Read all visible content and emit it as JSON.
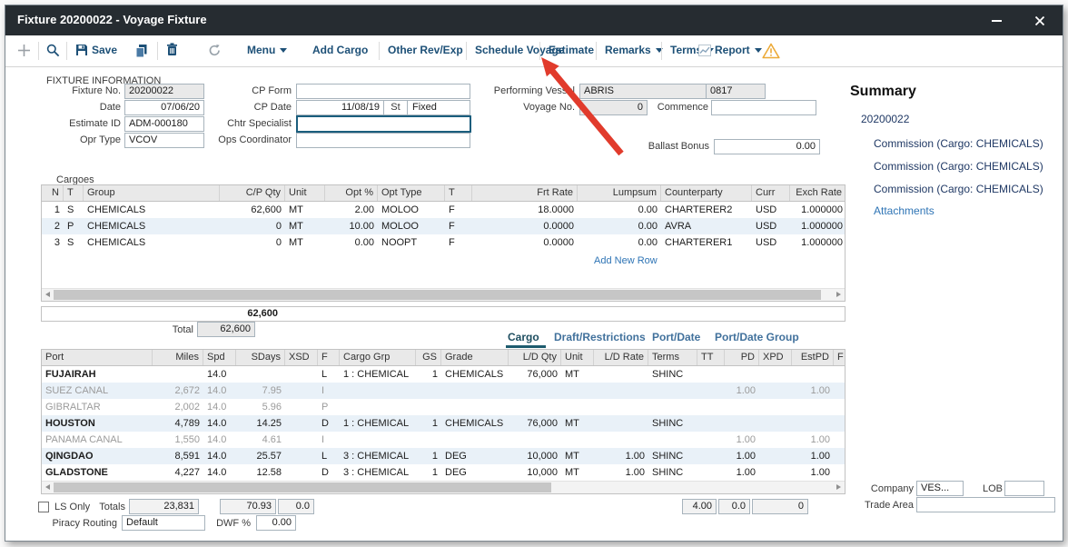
{
  "window": {
    "title": "Fixture 20200022 - Voyage Fixture"
  },
  "toolbar": {
    "save": "Save",
    "menu": "Menu",
    "add_cargo": "Add Cargo",
    "other_rev_exp": "Other Rev/Exp",
    "schedule_voyage": "Schedule Voyage",
    "estimate": "Estimate",
    "remarks": "Remarks",
    "terms": "Terms",
    "report": "Report"
  },
  "fixture_info": {
    "title": "FIXTURE INFORMATION",
    "fixture_no": {
      "label": "Fixture No.",
      "value": "20200022"
    },
    "date": {
      "label": "Date",
      "value": "07/06/20"
    },
    "estimate_id": {
      "label": "Estimate ID",
      "value": "ADM-000180"
    },
    "opr_type": {
      "label": "Opr Type",
      "value": "VCOV"
    },
    "cp_form": {
      "label": "CP Form",
      "value": ""
    },
    "cp_date": {
      "label": "CP Date",
      "value": "11/08/19"
    },
    "st": {
      "label": "St",
      "value": "Fixed"
    },
    "chtr_specialist": {
      "label": "Chtr Specialist",
      "value": ""
    },
    "ops_coordinator": {
      "label": "Ops Coordinator",
      "value": ""
    },
    "performing_vessel": {
      "label": "Performing Vessel",
      "value": "ABRIS",
      "code": "0817"
    },
    "voyage_no": {
      "label": "Voyage No.",
      "value": "0"
    },
    "commence": {
      "label": "Commence",
      "value": ""
    },
    "ballast_bonus": {
      "label": "Ballast Bonus",
      "value": "0.00"
    }
  },
  "summary": {
    "title": "Summary",
    "fixture_id": "20200022",
    "items": [
      "Commission (Cargo: CHEMICALS)",
      "Commission (Cargo: CHEMICALS)",
      "Commission (Cargo: CHEMICALS)"
    ],
    "attachments": "Attachments"
  },
  "cargoes": {
    "title": "Cargoes",
    "headers": [
      "N",
      "T",
      "Group",
      "C/P Qty",
      "Unit",
      "Opt %",
      "Opt Type",
      "T",
      "Frt Rate",
      "Lumpsum",
      "Counterparty",
      "Curr",
      "Exch Rate"
    ],
    "rows": [
      [
        "1",
        "S",
        "CHEMICALS",
        "62,600",
        "MT",
        "2.00",
        "MOLOO",
        "F",
        "18.0000",
        "0.00",
        "CHARTERER2",
        "USD",
        "1.000000"
      ],
      [
        "2",
        "P",
        "CHEMICALS",
        "0",
        "MT",
        "10.00",
        "MOLOO",
        "F",
        "0.0000",
        "0.00",
        "AVRA",
        "USD",
        "1.000000"
      ],
      [
        "3",
        "S",
        "CHEMICALS",
        "0",
        "MT",
        "0.00",
        "NOOPT",
        "F",
        "0.0000",
        "0.00",
        "CHARTERER1",
        "USD",
        "1.000000"
      ]
    ],
    "add_new_row": "Add New Row",
    "column_total": "62,600",
    "total_label": "Total",
    "total_value": "62,600"
  },
  "tabs": {
    "cargo": "Cargo",
    "draft_restrictions": "Draft/Restrictions",
    "port_date": "Port/Date",
    "port_date_group": "Port/Date Group"
  },
  "itinerary": {
    "headers": [
      "Port",
      "Miles",
      "Spd",
      "SDays",
      "XSD",
      "F",
      "Cargo Grp",
      "GS",
      "Grade",
      "L/D Qty",
      "Unit",
      "L/D Rate",
      "Terms",
      "TT",
      "PD",
      "XPD",
      "EstPD",
      "F"
    ],
    "rows": [
      [
        "FUJAIRAH",
        "",
        "14.0",
        "",
        "",
        "L",
        "1 : CHEMICAL",
        "1",
        "CHEMICALS",
        "76,000",
        "MT",
        "",
        "SHINC",
        "",
        "",
        "",
        "",
        ""
      ],
      [
        "SUEZ CANAL",
        "2,672",
        "14.0",
        "7.95",
        "",
        "I",
        "",
        "",
        "",
        "",
        "",
        "",
        "",
        "",
        "1.00",
        "",
        "1.00",
        ""
      ],
      [
        "GIBRALTAR",
        "2,002",
        "14.0",
        "5.96",
        "",
        "P",
        "",
        "",
        "",
        "",
        "",
        "",
        "",
        "",
        "",
        "",
        "",
        ""
      ],
      [
        "HOUSTON",
        "4,789",
        "14.0",
        "14.25",
        "",
        "D",
        "1 : CHEMICAL",
        "1",
        "CHEMICALS",
        "76,000",
        "MT",
        "",
        "SHINC",
        "",
        "",
        "",
        "",
        ""
      ],
      [
        "PANAMA CANAL",
        "1,550",
        "14.0",
        "4.61",
        "",
        "I",
        "",
        "",
        "",
        "",
        "",
        "",
        "",
        "",
        "1.00",
        "",
        "1.00",
        ""
      ],
      [
        "QINGDAO",
        "8,591",
        "14.0",
        "25.57",
        "",
        "L",
        "3 : CHEMICAL",
        "1",
        "DEG",
        "10,000",
        "MT",
        "1.00",
        "SHINC",
        "",
        "1.00",
        "",
        "1.00",
        ""
      ],
      [
        "GLADSTONE",
        "4,227",
        "14.0",
        "12.58",
        "",
        "D",
        "3 : CHEMICAL",
        "1",
        "DEG",
        "10,000",
        "MT",
        "1.00",
        "SHINC",
        "",
        "1.00",
        "",
        "1.00",
        ""
      ]
    ]
  },
  "bottom": {
    "ls_only": "LS Only",
    "totals_label": "Totals",
    "miles_total": "23,831",
    "sdays_total": "70.93",
    "xsd_total": "0.0",
    "tt_total": "4.00",
    "pd_total": "0.0",
    "xpd_total": "0",
    "piracy_label": "Piracy Routing",
    "piracy_value": "Default",
    "dwf_label": "DWF %",
    "dwf_value": "0.00",
    "company_label": "Company",
    "company_value": "VES...",
    "lob_label": "LOB",
    "lob_value": "",
    "trade_area_label": "Trade Area",
    "trade_area_value": ""
  }
}
